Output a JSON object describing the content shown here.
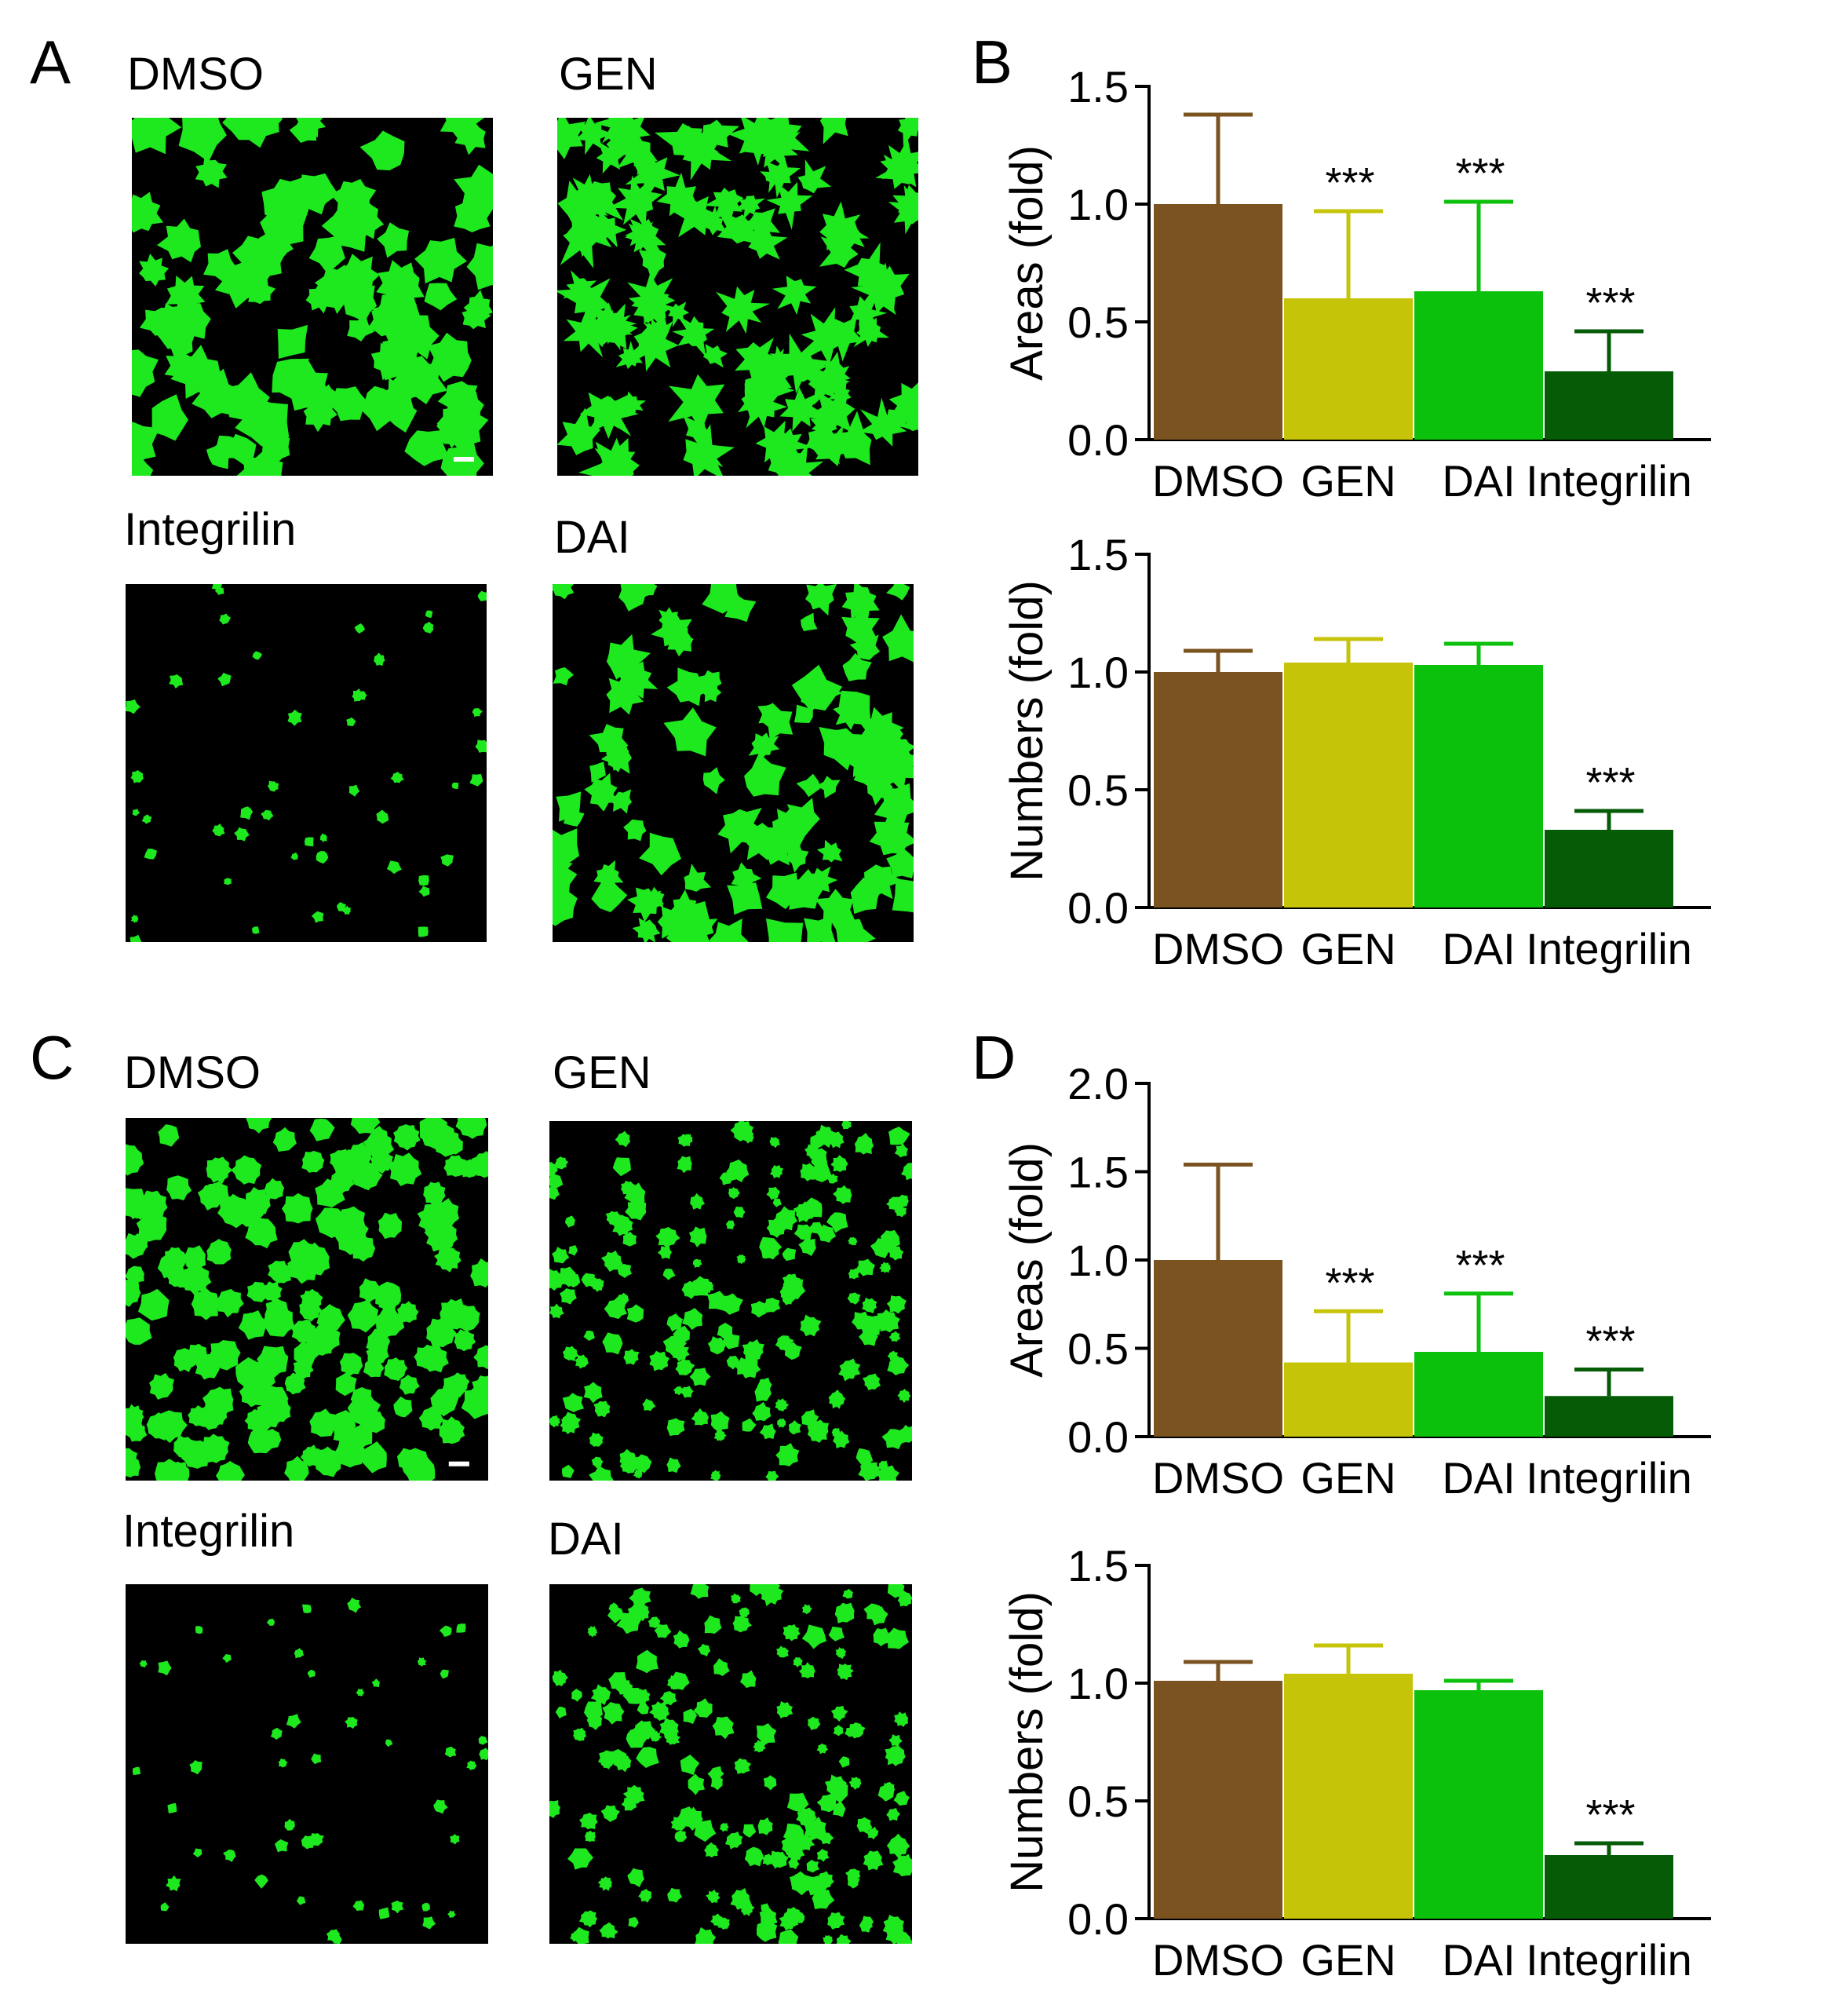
{
  "panels": {
    "A": {
      "letter": "A",
      "images": [
        {
          "label": "DMSO",
          "morphology": "large-spread"
        },
        {
          "label": "GEN",
          "morphology": "stellate"
        },
        {
          "label": "Integrilin",
          "morphology": "sparse-small"
        },
        {
          "label": "DAI",
          "morphology": "medium-spread"
        }
      ]
    },
    "B": {
      "letter": "B"
    },
    "C": {
      "letter": "C",
      "images": [
        {
          "label": "DMSO",
          "morphology": "round-dense"
        },
        {
          "label": "GEN",
          "morphology": "small-dense"
        },
        {
          "label": "Integrilin",
          "morphology": "sparse-small"
        },
        {
          "label": "DAI",
          "morphology": "small-dense"
        }
      ]
    },
    "D": {
      "letter": "D"
    }
  },
  "colors": {
    "DMSO": "#7a5320",
    "GEN": "#c6c409",
    "DAI": "#0cc10c",
    "Integrilin": "#065b06",
    "cells": "#1ee81e",
    "background": "#000000"
  },
  "chart_data": [
    {
      "panel": "B",
      "type": "bar",
      "categories": [
        "DMSO",
        "GEN",
        "DAI",
        "Integrilin"
      ],
      "values": [
        1.0,
        0.6,
        0.63,
        0.29
      ],
      "errors": [
        0.38,
        0.37,
        0.38,
        0.17
      ],
      "annotations": [
        "",
        "***",
        "***",
        "***"
      ],
      "ylabel": "Areas (fold)",
      "ylim": [
        0,
        1.5
      ],
      "yticks": [
        "0.0",
        "0.5",
        "1.0",
        "1.5"
      ],
      "ytick_values": [
        0,
        0.5,
        1.0,
        1.5
      ]
    },
    {
      "panel": "B",
      "type": "bar",
      "categories": [
        "DMSO",
        "GEN",
        "DAI",
        "Integrilin"
      ],
      "values": [
        1.0,
        1.04,
        1.03,
        0.33
      ],
      "errors": [
        0.09,
        0.1,
        0.09,
        0.08
      ],
      "annotations": [
        "",
        "",
        "",
        "***"
      ],
      "ylabel": "Numbers (fold)",
      "ylim": [
        0,
        1.5
      ],
      "yticks": [
        "0.0",
        "0.5",
        "1.0",
        "1.5"
      ],
      "ytick_values": [
        0,
        0.5,
        1.0,
        1.5
      ]
    },
    {
      "panel": "D",
      "type": "bar",
      "categories": [
        "DMSO",
        "GEN",
        "DAI",
        "Integrilin"
      ],
      "values": [
        1.0,
        0.42,
        0.48,
        0.23
      ],
      "errors": [
        0.54,
        0.29,
        0.33,
        0.15
      ],
      "annotations": [
        "",
        "***",
        "***",
        "***"
      ],
      "ylabel": "Areas (fold)",
      "ylim": [
        0,
        2.0
      ],
      "yticks": [
        "0.0",
        "0.5",
        "1.0",
        "1.5",
        "2.0"
      ],
      "ytick_values": [
        0,
        0.5,
        1.0,
        1.5,
        2.0
      ]
    },
    {
      "panel": "D",
      "type": "bar",
      "categories": [
        "DMSO",
        "GEN",
        "DAI",
        "Integrilin"
      ],
      "values": [
        1.01,
        1.04,
        0.97,
        0.27
      ],
      "errors": [
        0.08,
        0.12,
        0.04,
        0.05
      ],
      "annotations": [
        "",
        "",
        "",
        "***"
      ],
      "ylabel": "Numbers (fold)",
      "ylim": [
        0,
        1.5
      ],
      "yticks": [
        "0.0",
        "0.5",
        "1.0",
        "1.5"
      ],
      "ytick_values": [
        0,
        0.5,
        1.0,
        1.5
      ]
    }
  ]
}
